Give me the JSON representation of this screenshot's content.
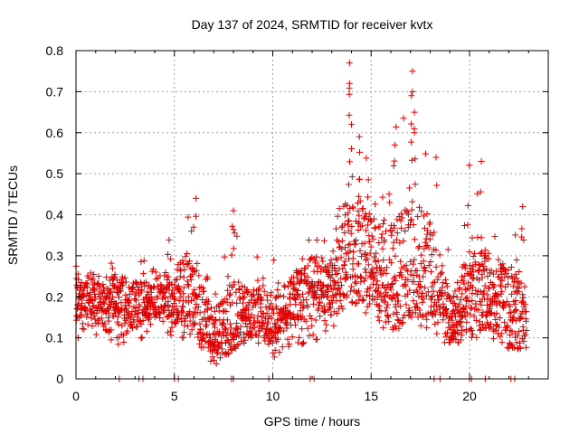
{
  "chart_data": {
    "type": "scatter",
    "title": "Day 137 of 2024, SRMTID for receiver kvtx",
    "xlabel": "GPS time / hours",
    "ylabel": "SRMTID / TECUs",
    "xlim": [
      0,
      24
    ],
    "ylim": [
      0,
      0.8
    ],
    "grid": true,
    "marker": "plus",
    "color": "#e00000",
    "x_ticks": [
      0,
      5,
      10,
      15,
      20
    ],
    "x_tick_labels": [
      "0",
      "5",
      "10",
      "15",
      "20"
    ],
    "y_ticks": [
      0,
      0.1,
      0.2,
      0.3,
      0.4,
      0.5,
      0.6,
      0.7,
      0.8
    ],
    "y_tick_labels": [
      "0",
      "0.1",
      "0.2",
      "0.3",
      "0.4",
      "0.5",
      "0.6",
      "0.7",
      "0.8"
    ],
    "series": [
      {
        "name": "SRMTID",
        "hourly_envelope": [
          {
            "hour": 0,
            "low": 0.1,
            "typical": 0.2,
            "high": 0.31
          },
          {
            "hour": 1,
            "low": 0.1,
            "typical": 0.2,
            "high": 0.3
          },
          {
            "hour": 2,
            "low": 0.08,
            "typical": 0.2,
            "high": 0.28
          },
          {
            "hour": 3,
            "low": 0.08,
            "typical": 0.18,
            "high": 0.3
          },
          {
            "hour": 4,
            "low": 0.12,
            "typical": 0.2,
            "high": 0.28
          },
          {
            "hour": 5,
            "low": 0.1,
            "typical": 0.2,
            "high": 0.36
          },
          {
            "hour": 6,
            "low": 0.1,
            "typical": 0.22,
            "high": 0.44
          },
          {
            "hour": 7,
            "low": 0.03,
            "typical": 0.1,
            "high": 0.26
          },
          {
            "hour": 8,
            "low": 0.07,
            "typical": 0.15,
            "high": 0.41
          },
          {
            "hour": 9,
            "low": 0.1,
            "typical": 0.17,
            "high": 0.31
          },
          {
            "hour": 10,
            "low": 0.05,
            "typical": 0.14,
            "high": 0.3
          },
          {
            "hour": 11,
            "low": 0.08,
            "typical": 0.2,
            "high": 0.28
          },
          {
            "hour": 12,
            "low": 0.08,
            "typical": 0.22,
            "high": 0.37
          },
          {
            "hour": 13,
            "low": 0.12,
            "typical": 0.23,
            "high": 0.34
          },
          {
            "hour": 14,
            "low": 0.15,
            "typical": 0.34,
            "high": 0.77
          },
          {
            "hour": 15,
            "low": 0.15,
            "typical": 0.3,
            "high": 0.5
          },
          {
            "hour": 16,
            "low": 0.1,
            "typical": 0.24,
            "high": 0.57
          },
          {
            "hour": 17,
            "low": 0.15,
            "typical": 0.3,
            "high": 0.75
          },
          {
            "hour": 18,
            "low": 0.1,
            "typical": 0.27,
            "high": 0.55
          },
          {
            "hour": 19,
            "low": 0.07,
            "typical": 0.15,
            "high": 0.3
          },
          {
            "hour": 20,
            "low": 0.1,
            "typical": 0.2,
            "high": 0.53
          },
          {
            "hour": 21,
            "low": 0.1,
            "typical": 0.22,
            "high": 0.45
          },
          {
            "hour": 22,
            "low": 0.06,
            "typical": 0.17,
            "high": 0.42
          }
        ],
        "peaks": [
          {
            "x": 6.1,
            "y": 0.44
          },
          {
            "x": 8.0,
            "y": 0.41
          },
          {
            "x": 13.9,
            "y": 0.77
          },
          {
            "x": 13.9,
            "y": 0.72
          },
          {
            "x": 14.0,
            "y": 0.62
          },
          {
            "x": 14.4,
            "y": 0.59
          },
          {
            "x": 16.2,
            "y": 0.57
          },
          {
            "x": 17.1,
            "y": 0.75
          },
          {
            "x": 17.1,
            "y": 0.7
          },
          {
            "x": 17.2,
            "y": 0.65
          },
          {
            "x": 17.2,
            "y": 0.6
          },
          {
            "x": 18.3,
            "y": 0.54
          },
          {
            "x": 20.6,
            "y": 0.53
          },
          {
            "x": 22.7,
            "y": 0.42
          }
        ],
        "zero_points_x": [
          2.2,
          3.2,
          3.4,
          5.0,
          5.2,
          7.9,
          8.0,
          9.8,
          11.9,
          12.1,
          18.2,
          18.5,
          20.0,
          20.1,
          20.8,
          22.1,
          22.3
        ]
      }
    ]
  }
}
